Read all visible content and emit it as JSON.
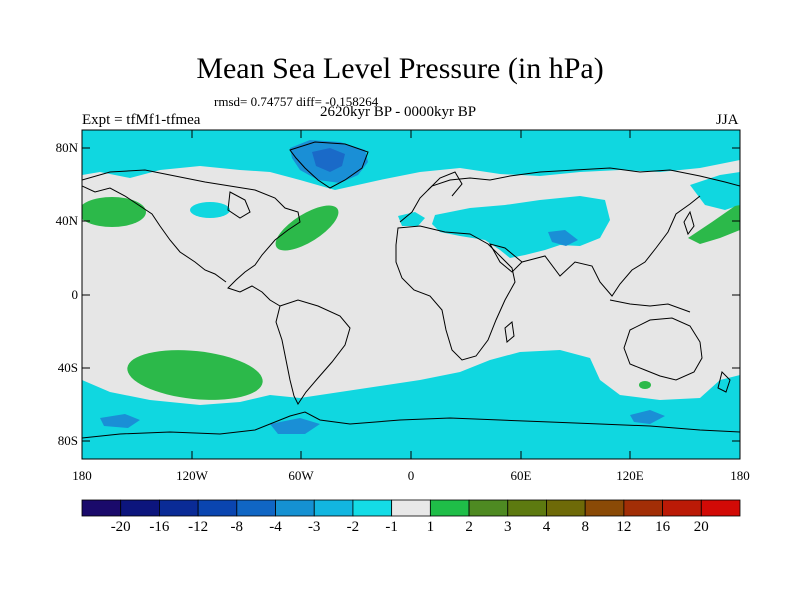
{
  "title": "Mean Sea Level Pressure (in hPa)",
  "stats": "rmsd= 0.74757 diff= -0.158264",
  "period": "2620kyr BP - 0000kyr BP",
  "experiment": "Expt = tfMf1-tfmea",
  "season": "JJA",
  "axes": {
    "y_ticks": [
      "80N",
      "40N",
      "0",
      "40S",
      "80S"
    ],
    "x_ticks": [
      "180",
      "120W",
      "60W",
      "0",
      "60E",
      "120E",
      "180"
    ]
  },
  "colorbar": {
    "labels": [
      "-20",
      "-16",
      "-12",
      "-8",
      "-4",
      "-3",
      "-2",
      "-1",
      "1",
      "2",
      "3",
      "4",
      "8",
      "12",
      "16",
      "20"
    ],
    "colors": [
      "#1a0a6b",
      "#0c157d",
      "#0a2b96",
      "#0a45b0",
      "#1066c4",
      "#1591d2",
      "#12b6e0",
      "#14dce6",
      "#e8e8e8",
      "#1fbe48",
      "#4e8a22",
      "#5d7a10",
      "#6e6a08",
      "#8a4a06",
      "#a22e06",
      "#bb1a06",
      "#d20a06"
    ]
  },
  "map_colors": {
    "background": "#e6e6e6",
    "light_cyan": "#10d7e0",
    "blue": "#1a8fd6",
    "dark_blue": "#1a6ac8",
    "green": "#2cb94a",
    "coast": "#000000"
  }
}
